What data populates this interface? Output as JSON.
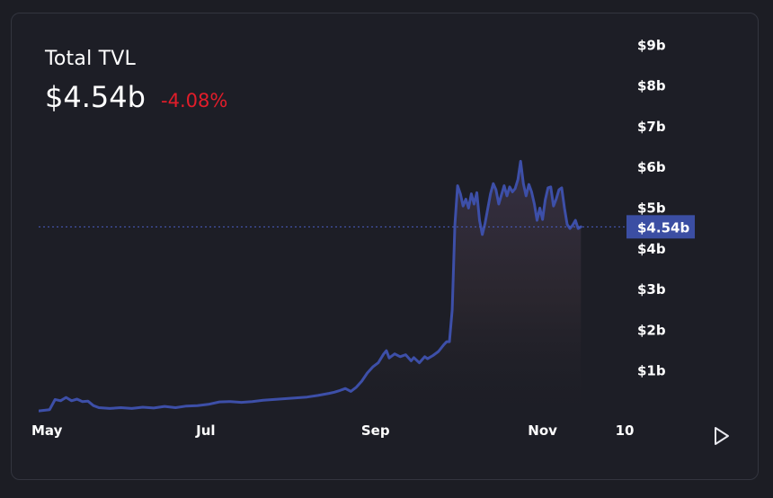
{
  "header": {
    "title": "Total TVL",
    "value": "$4.54b",
    "change": "-4.08%"
  },
  "controls": {
    "play_icon": "play-icon"
  },
  "colors": {
    "line": "#3d4fa8",
    "negative": "#e11d2a",
    "price_tag_bg": "#3b4ea3",
    "axis_text": "#ffffff"
  },
  "chart_data": {
    "type": "area",
    "title": "Total TVL",
    "current_value": 4.54,
    "current_label": "$4.54b",
    "y_unit": "billion USD",
    "ylim": [
      0,
      9
    ],
    "y_ticks": [
      {
        "value": 1,
        "label": "$1b"
      },
      {
        "value": 2,
        "label": "$2b"
      },
      {
        "value": 3,
        "label": "$3b"
      },
      {
        "value": 4,
        "label": "$4b"
      },
      {
        "value": 5,
        "label": "$5b"
      },
      {
        "value": 6,
        "label": "$6b"
      },
      {
        "value": 7,
        "label": "$7b"
      },
      {
        "value": 8,
        "label": "$8b"
      },
      {
        "value": 9,
        "label": "$9b"
      }
    ],
    "x_ticks": [
      {
        "date": "2023-05-01",
        "label": "May"
      },
      {
        "date": "2023-07-01",
        "label": "Jul"
      },
      {
        "date": "2023-09-01",
        "label": "Sep"
      },
      {
        "date": "2023-11-01",
        "label": "Nov"
      },
      {
        "date": "2023-12-01",
        "label": "10"
      }
    ],
    "xlim": [
      "2023-05-01",
      "2023-12-01"
    ],
    "grid": false,
    "series": [
      {
        "points": [
          [
            "2023-05-01",
            0.02
          ],
          [
            "2023-05-05",
            0.05
          ],
          [
            "2023-05-07",
            0.3
          ],
          [
            "2023-05-09",
            0.27
          ],
          [
            "2023-05-11",
            0.35
          ],
          [
            "2023-05-13",
            0.27
          ],
          [
            "2023-05-15",
            0.31
          ],
          [
            "2023-05-17",
            0.25
          ],
          [
            "2023-05-19",
            0.26
          ],
          [
            "2023-05-21",
            0.15
          ],
          [
            "2023-05-23",
            0.1
          ],
          [
            "2023-05-27",
            0.08
          ],
          [
            "2023-05-31",
            0.1
          ],
          [
            "2023-06-04",
            0.08
          ],
          [
            "2023-06-08",
            0.11
          ],
          [
            "2023-06-12",
            0.09
          ],
          [
            "2023-06-16",
            0.13
          ],
          [
            "2023-06-20",
            0.1
          ],
          [
            "2023-06-24",
            0.14
          ],
          [
            "2023-06-28",
            0.15
          ],
          [
            "2023-07-02",
            0.18
          ],
          [
            "2023-07-06",
            0.24
          ],
          [
            "2023-07-10",
            0.25
          ],
          [
            "2023-07-14",
            0.23
          ],
          [
            "2023-07-18",
            0.25
          ],
          [
            "2023-07-22",
            0.28
          ],
          [
            "2023-07-26",
            0.3
          ],
          [
            "2023-07-30",
            0.32
          ],
          [
            "2023-08-03",
            0.34
          ],
          [
            "2023-08-07",
            0.36
          ],
          [
            "2023-08-11",
            0.4
          ],
          [
            "2023-08-15",
            0.45
          ],
          [
            "2023-08-17",
            0.48
          ],
          [
            "2023-08-19",
            0.52
          ],
          [
            "2023-08-21",
            0.57
          ],
          [
            "2023-08-23",
            0.5
          ],
          [
            "2023-08-25",
            0.6
          ],
          [
            "2023-08-27",
            0.75
          ],
          [
            "2023-08-29",
            0.95
          ],
          [
            "2023-08-31",
            1.1
          ],
          [
            "2023-09-02",
            1.2
          ],
          [
            "2023-09-04",
            1.42
          ],
          [
            "2023-09-05",
            1.5
          ],
          [
            "2023-09-06",
            1.32
          ],
          [
            "2023-09-08",
            1.42
          ],
          [
            "2023-09-10",
            1.35
          ],
          [
            "2023-09-12",
            1.4
          ],
          [
            "2023-09-14",
            1.25
          ],
          [
            "2023-09-15",
            1.33
          ],
          [
            "2023-09-17",
            1.2
          ],
          [
            "2023-09-19",
            1.35
          ],
          [
            "2023-09-20",
            1.3
          ],
          [
            "2023-09-22",
            1.38
          ],
          [
            "2023-09-24",
            1.48
          ],
          [
            "2023-09-26",
            1.65
          ],
          [
            "2023-09-27",
            1.72
          ],
          [
            "2023-09-28",
            1.72
          ],
          [
            "2023-09-29",
            2.5
          ],
          [
            "2023-09-30",
            4.6
          ],
          [
            "2023-10-01",
            5.55
          ],
          [
            "2023-10-02",
            5.35
          ],
          [
            "2023-10-03",
            5.05
          ],
          [
            "2023-10-04",
            5.22
          ],
          [
            "2023-10-05",
            5.0
          ],
          [
            "2023-10-06",
            5.35
          ],
          [
            "2023-10-07",
            5.1
          ],
          [
            "2023-10-08",
            5.38
          ],
          [
            "2023-10-09",
            4.7
          ],
          [
            "2023-10-10",
            4.35
          ],
          [
            "2023-10-11",
            4.62
          ],
          [
            "2023-10-13",
            5.35
          ],
          [
            "2023-10-14",
            5.6
          ],
          [
            "2023-10-15",
            5.45
          ],
          [
            "2023-10-16",
            5.1
          ],
          [
            "2023-10-18",
            5.55
          ],
          [
            "2023-10-19",
            5.3
          ],
          [
            "2023-10-20",
            5.52
          ],
          [
            "2023-10-21",
            5.4
          ],
          [
            "2023-10-22",
            5.48
          ],
          [
            "2023-10-23",
            5.7
          ],
          [
            "2023-10-24",
            6.15
          ],
          [
            "2023-10-25",
            5.6
          ],
          [
            "2023-10-26",
            5.3
          ],
          [
            "2023-10-27",
            5.58
          ],
          [
            "2023-10-28",
            5.4
          ],
          [
            "2023-10-29",
            5.1
          ],
          [
            "2023-10-30",
            4.7
          ],
          [
            "2023-10-31",
            5.0
          ],
          [
            "2023-11-01",
            4.72
          ],
          [
            "2023-11-02",
            5.2
          ],
          [
            "2023-11-03",
            5.5
          ],
          [
            "2023-11-04",
            5.52
          ],
          [
            "2023-11-05",
            5.05
          ],
          [
            "2023-11-06",
            5.22
          ],
          [
            "2023-11-07",
            5.45
          ],
          [
            "2023-11-08",
            5.5
          ],
          [
            "2023-11-09",
            5.0
          ],
          [
            "2023-11-10",
            4.6
          ],
          [
            "2023-11-11",
            4.5
          ],
          [
            "2023-11-12",
            4.58
          ],
          [
            "2023-11-13",
            4.7
          ],
          [
            "2023-11-14",
            4.5
          ],
          [
            "2023-11-15",
            4.54
          ]
        ]
      }
    ]
  }
}
